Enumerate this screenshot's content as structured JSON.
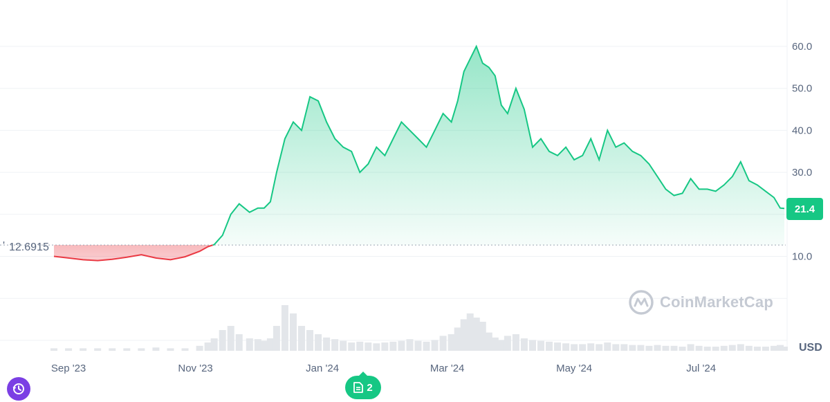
{
  "chart_data": {
    "type": "line",
    "currency_label": "USD",
    "current_price": "21.4",
    "reference_price_label": "12.6915",
    "reference_price": 12.6915,
    "ylim": [
      0,
      70
    ],
    "y_ticks": [
      "10.0",
      "20.0",
      "30.0",
      "40.0",
      "50.0",
      "60.0"
    ],
    "x_ticks": [
      "Sep '23",
      "Nov '23",
      "Jan '24",
      "Mar '24",
      "May '24",
      "Jul '24"
    ],
    "colors": {
      "up": "#16c784",
      "down": "#ea3943",
      "grid": "#eff2f5"
    },
    "x": [
      "2023-08-25",
      "2023-09-01",
      "2023-09-08",
      "2023-09-15",
      "2023-09-22",
      "2023-09-29",
      "2023-10-06",
      "2023-10-13",
      "2023-10-20",
      "2023-10-27",
      "2023-11-03",
      "2023-11-07",
      "2023-11-10",
      "2023-11-14",
      "2023-11-18",
      "2023-11-22",
      "2023-11-27",
      "2023-12-01",
      "2023-12-04",
      "2023-12-07",
      "2023-12-10",
      "2023-12-14",
      "2023-12-18",
      "2023-12-22",
      "2023-12-26",
      "2023-12-30",
      "2024-01-03",
      "2024-01-07",
      "2024-01-11",
      "2024-01-15",
      "2024-01-19",
      "2024-01-23",
      "2024-01-27",
      "2024-01-31",
      "2024-02-04",
      "2024-02-08",
      "2024-02-12",
      "2024-02-16",
      "2024-02-20",
      "2024-02-24",
      "2024-02-28",
      "2024-03-03",
      "2024-03-06",
      "2024-03-09",
      "2024-03-12",
      "2024-03-15",
      "2024-03-18",
      "2024-03-21",
      "2024-03-24",
      "2024-03-27",
      "2024-03-30",
      "2024-04-03",
      "2024-04-07",
      "2024-04-11",
      "2024-04-15",
      "2024-04-19",
      "2024-04-23",
      "2024-04-27",
      "2024-05-01",
      "2024-05-05",
      "2024-05-09",
      "2024-05-13",
      "2024-05-17",
      "2024-05-21",
      "2024-05-25",
      "2024-05-29",
      "2024-06-02",
      "2024-06-06",
      "2024-06-10",
      "2024-06-14",
      "2024-06-18",
      "2024-06-22",
      "2024-06-26",
      "2024-06-30",
      "2024-07-04",
      "2024-07-08",
      "2024-07-12",
      "2024-07-16",
      "2024-07-20",
      "2024-07-24",
      "2024-07-28",
      "2024-08-01",
      "2024-08-05",
      "2024-08-08",
      "2024-08-10"
    ],
    "series": [
      {
        "values": [
          10.0,
          9.6,
          9.2,
          9.0,
          9.3,
          9.8,
          10.4,
          9.6,
          9.2,
          9.9,
          11.2,
          12.3,
          12.8,
          15.0,
          20.0,
          22.5,
          20.5,
          21.5,
          21.5,
          23.0,
          30.0,
          38.0,
          42.0,
          40.0,
          48.0,
          47.0,
          42.0,
          38.0,
          36.0,
          35.0,
          30.0,
          32.0,
          36.0,
          34.0,
          38.0,
          42.0,
          40.0,
          38.0,
          36.0,
          40.0,
          44.0,
          42.0,
          47.0,
          54.0,
          57.0,
          60.0,
          56.0,
          55.0,
          53.0,
          46.0,
          44.0,
          50.0,
          45.0,
          36.0,
          38.0,
          35.0,
          34.0,
          36.0,
          33.0,
          34.0,
          38.0,
          33.0,
          40.0,
          36.0,
          37.0,
          35.0,
          34.0,
          32.0,
          29.0,
          26.0,
          24.5,
          25.0,
          28.5,
          26.0,
          26.0,
          25.5,
          27.0,
          29.0,
          32.5,
          28.0,
          27.0,
          25.5,
          24.0,
          21.5,
          21.4
        ]
      }
    ],
    "volume": [
      0.3,
      0.3,
      0.3,
      0.3,
      0.3,
      0.3,
      0.3,
      0.4,
      0.3,
      0.3,
      0.6,
      1.0,
      1.5,
      2.5,
      3.0,
      2.0,
      1.5,
      1.4,
      1.2,
      1.5,
      3.0,
      5.5,
      4.5,
      3.0,
      2.5,
      2.0,
      1.6,
      1.4,
      1.2,
      1.0,
      1.1,
      1.0,
      0.9,
      1.0,
      1.1,
      1.2,
      1.4,
      1.2,
      1.1,
      1.3,
      1.8,
      2.0,
      2.8,
      3.8,
      4.5,
      4.0,
      3.5,
      2.2,
      1.6,
      1.3,
      1.8,
      2.0,
      1.5,
      1.3,
      1.2,
      1.1,
      1.0,
      0.9,
      0.8,
      0.8,
      0.9,
      0.8,
      1.0,
      0.8,
      0.8,
      0.7,
      0.7,
      0.6,
      0.7,
      0.6,
      0.6,
      0.5,
      0.8,
      0.6,
      0.5,
      0.5,
      0.6,
      0.7,
      0.8,
      0.6,
      0.5,
      0.5,
      0.6,
      0.7,
      0.5
    ],
    "volume_max": 6
  },
  "buttons": {
    "notes_count": "2"
  },
  "watermark": "CoinMarketCap",
  "icons": {
    "history": "history-icon",
    "notes": "document-icon",
    "logo": "coinmarketcap-logo-icon"
  }
}
